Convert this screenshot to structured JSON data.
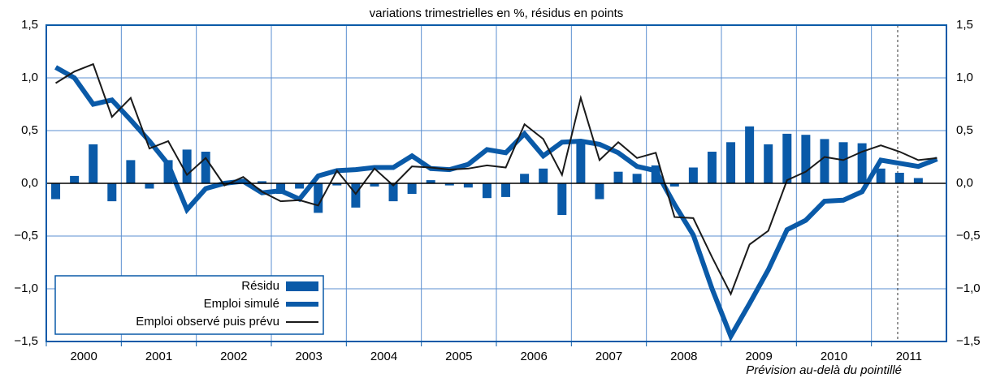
{
  "chart_data": {
    "type": "bar-line",
    "title": "variations trimestrielles en %, résidus en points",
    "note": "Prévision au-delà du pointillé",
    "categories": [
      "2000",
      "2001",
      "2002",
      "2003",
      "2004",
      "2005",
      "2006",
      "2007",
      "2008",
      "2009",
      "2010",
      "2011"
    ],
    "ylim": [
      -1.5,
      1.5
    ],
    "yticks": [
      {
        "value": -1.5,
        "label": "−1,5"
      },
      {
        "value": -1,
        "label": "−1,0"
      },
      {
        "value": -0.5,
        "label": "−0,5"
      },
      {
        "value": 0,
        "label": "0,0"
      },
      {
        "value": 0.5,
        "label": "0,5"
      },
      {
        "value": 1,
        "label": "1,0"
      },
      {
        "value": 1.5,
        "label": "1,5"
      }
    ],
    "grid": true,
    "legend": "lower left",
    "series": [
      {
        "name": "Résidu",
        "type": "bar",
        "color": "#0a5aa8",
        "values": [
          [
            -0.15,
            0.07,
            0.37,
            -0.17
          ],
          [
            0.22,
            -0.05,
            0.22,
            0.32
          ],
          [
            0.3,
            0.0,
            0.01,
            0.02
          ],
          [
            -0.1,
            -0.05,
            -0.28,
            -0.02
          ],
          [
            -0.23,
            -0.03,
            -0.17,
            -0.1
          ],
          [
            0.03,
            -0.02,
            -0.04,
            -0.14
          ],
          [
            -0.13,
            0.09,
            0.14,
            -0.3
          ],
          [
            0.38,
            -0.15,
            0.11,
            0.09
          ],
          [
            0.17,
            -0.03,
            0.15,
            0.3
          ],
          [
            0.39,
            0.54,
            0.37,
            0.47
          ],
          [
            0.46,
            0.42,
            0.39,
            0.38
          ],
          [
            0.14,
            0.1,
            0.05,
            0.0
          ]
        ]
      },
      {
        "name": "Emploi simulé",
        "type": "line",
        "color": "#0a5aa8",
        "width": 6,
        "values": [
          [
            1.1,
            1.0,
            0.75,
            0.79
          ],
          [
            0.6,
            0.4,
            0.18,
            -0.25
          ],
          [
            -0.05,
            0.0,
            0.02,
            -0.09
          ],
          [
            -0.07,
            -0.15,
            0.07,
            0.12
          ],
          [
            0.13,
            0.15,
            0.15,
            0.26
          ],
          [
            0.14,
            0.13,
            0.18,
            0.32
          ],
          [
            0.29,
            0.47,
            0.26,
            0.39
          ],
          [
            0.4,
            0.37,
            0.29,
            0.16
          ],
          [
            0.12,
            -0.2,
            -0.49,
            -1.0
          ],
          [
            -1.45,
            -1.14,
            -0.82,
            -0.44
          ],
          [
            -0.35,
            -0.17,
            -0.16,
            -0.08
          ],
          [
            0.22,
            0.19,
            0.16,
            0.23
          ]
        ]
      },
      {
        "name": "Emploi observé puis prévu",
        "type": "line",
        "color": "#1a1a1a",
        "width": 2,
        "values": [
          [
            0.95,
            1.06,
            1.13,
            0.63
          ],
          [
            0.81,
            0.33,
            0.4,
            0.08
          ],
          [
            0.24,
            -0.02,
            0.06,
            -0.08
          ],
          [
            -0.17,
            -0.16,
            -0.21,
            0.12
          ],
          [
            -0.1,
            0.14,
            -0.02,
            0.16
          ],
          [
            0.15,
            0.13,
            0.14,
            0.17
          ],
          [
            0.15,
            0.56,
            0.42,
            0.08
          ],
          [
            0.81,
            0.22,
            0.39,
            0.24
          ],
          [
            0.29,
            -0.32,
            -0.33,
            -0.7
          ],
          [
            -1.05,
            -0.58,
            -0.45,
            0.03
          ],
          [
            0.11,
            0.25,
            0.22,
            0.3
          ],
          [
            0.36,
            0.3,
            0.22,
            0.24
          ]
        ]
      }
    ]
  }
}
